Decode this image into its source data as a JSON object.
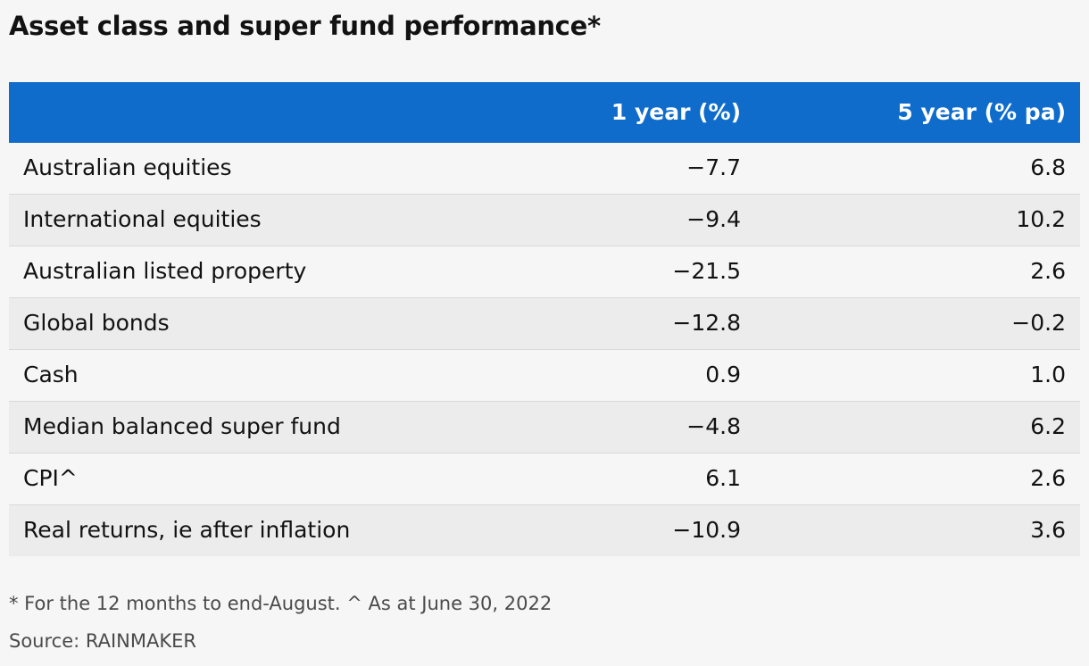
{
  "chart_data": {
    "type": "table",
    "title": "Asset class and super fund performance*",
    "columns": [
      "",
      "1 year (%)",
      "5 year (% pa)"
    ],
    "rows": [
      {
        "label": "Australian equities",
        "one_year": "−7.7",
        "five_year": "6.8"
      },
      {
        "label": "International equities",
        "one_year": "−9.4",
        "five_year": "10.2"
      },
      {
        "label": "Australian listed property",
        "one_year": "−21.5",
        "five_year": "2.6"
      },
      {
        "label": "Global bonds",
        "one_year": "−12.8",
        "five_year": "−0.2"
      },
      {
        "label": "Cash",
        "one_year": "0.9",
        "five_year": "1.0"
      },
      {
        "label": "Median balanced super fund",
        "one_year": "−4.8",
        "five_year": "6.2"
      },
      {
        "label": "CPI^",
        "one_year": "6.1",
        "five_year": "2.6"
      },
      {
        "label": "Real returns, ie after inflation",
        "one_year": "−10.9",
        "five_year": "3.6"
      }
    ],
    "footnote": "* For the 12 months to end-August. ^ As at June 30, 2022",
    "source": "Source: RAINMAKER"
  },
  "colors": {
    "header_bg": "#0f6ccb",
    "header_text": "#ffffff",
    "row_alt_bg": "#ececec",
    "page_bg": "#f6f6f6"
  }
}
